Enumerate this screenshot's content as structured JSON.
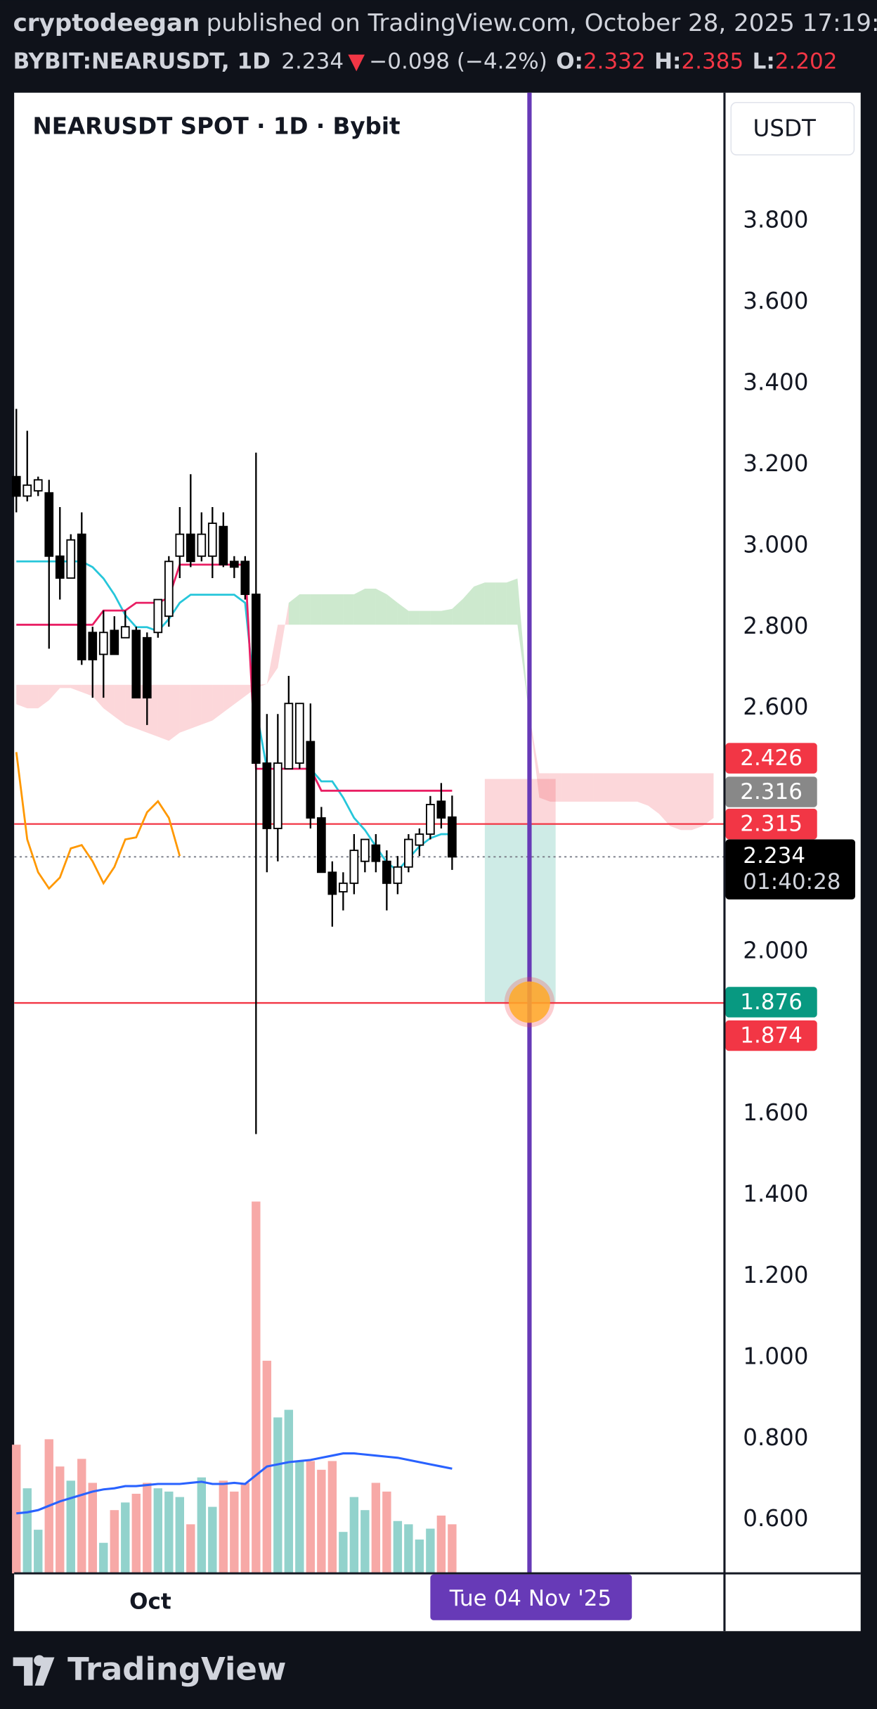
{
  "header": {
    "author": "cryptodeegan",
    "published": "published on TradingView.com, October 28, 2025 17:19:32",
    "symbol": "BYBIT:NEARUSDT, 1D",
    "arrow": "▼",
    "change": "−0.098 (−4.2%)",
    "open_label": "O:",
    "high_label": "H:",
    "low_label": "L:"
  },
  "footer": {
    "brand": "TradingView"
  },
  "chart_data": {
    "type": "candlestick",
    "title": "NEARUSDT SPOT · 1D · Bybit",
    "currency": "USDT",
    "open": [
      3.171,
      3.123,
      3.136,
      3.131,
      2.975,
      2.921,
      3.029,
      2.787,
      2.733,
      2.792,
      2.774,
      2.792,
      2.774,
      2.787,
      2.827,
      2.975,
      3.029,
      2.975,
      2.975,
      3.048,
      2.962,
      2.962,
      2.881,
      2.465,
      2.304,
      2.451,
      2.465,
      2.518,
      2.33,
      2.196,
      2.148,
      2.169,
      2.223,
      2.263,
      2.223,
      2.169,
      2.209,
      2.263,
      2.29,
      2.371,
      2.332
    ],
    "high": [
      3.338,
      3.284,
      3.171,
      3.163,
      3.096,
      3.029,
      3.083,
      2.801,
      2.841,
      2.827,
      2.841,
      2.801,
      2.787,
      2.868,
      2.975,
      3.096,
      3.177,
      3.083,
      3.096,
      3.083,
      2.975,
      2.975,
      3.23,
      2.586,
      2.586,
      2.68,
      2.612,
      2.612,
      2.357,
      2.223,
      2.196,
      2.29,
      2.277,
      2.29,
      2.25,
      2.236,
      2.29,
      2.304,
      2.384,
      2.416,
      2.385
    ],
    "low": [
      3.083,
      3.11,
      3.123,
      2.747,
      2.868,
      2.921,
      2.707,
      2.626,
      2.626,
      2.733,
      2.774,
      2.626,
      2.559,
      2.774,
      2.801,
      2.921,
      2.948,
      2.962,
      2.921,
      2.948,
      2.921,
      2.868,
      1.551,
      2.196,
      2.223,
      2.451,
      2.451,
      2.304,
      2.196,
      2.062,
      2.102,
      2.142,
      2.196,
      2.196,
      2.102,
      2.142,
      2.196,
      2.236,
      2.277,
      2.304,
      2.202
    ],
    "close": [
      3.123,
      3.15,
      3.163,
      2.975,
      2.921,
      3.015,
      2.72,
      2.72,
      2.787,
      2.733,
      2.801,
      2.626,
      2.626,
      2.868,
      2.962,
      3.029,
      2.962,
      3.029,
      3.056,
      2.954,
      2.948,
      2.881,
      2.465,
      2.304,
      2.465,
      2.612,
      2.612,
      2.33,
      2.196,
      2.142,
      2.169,
      2.25,
      2.277,
      2.223,
      2.169,
      2.209,
      2.277,
      2.29,
      2.363,
      2.33,
      2.234
    ],
    "up_color": "#ffffff",
    "down_color": "#000000",
    "volume": {
      "values": [
        118,
        78,
        40,
        123,
        98,
        85,
        105,
        83,
        28,
        58,
        65,
        73,
        83,
        78,
        75,
        70,
        45,
        88,
        61,
        85,
        75,
        83,
        341,
        195,
        143,
        150,
        103,
        103,
        95,
        103,
        38,
        70,
        58,
        83,
        75,
        48,
        45,
        31,
        41,
        53,
        45
      ],
      "up_color": "#92d2cc",
      "down_color": "#f7a9a7"
    },
    "volume_ma": {
      "color": "#2962ff",
      "values": [
        55,
        56,
        58,
        62,
        66,
        69,
        72,
        75,
        77,
        78,
        80,
        80,
        81,
        82,
        82,
        82,
        83,
        84,
        82,
        82,
        83,
        82,
        90,
        98,
        100,
        102,
        103,
        104,
        106,
        108,
        110,
        110,
        109,
        108,
        107,
        106,
        104,
        102,
        100,
        98,
        96
      ]
    },
    "tenkan": {
      "color": "#26c6da",
      "values": [
        2.962,
        2.962,
        2.962,
        2.962,
        2.962,
        2.962,
        2.962,
        2.948,
        2.92,
        2.88,
        2.83,
        2.8,
        2.8,
        2.79,
        2.82,
        2.86,
        2.88,
        2.88,
        2.88,
        2.88,
        2.88,
        2.86,
        2.6,
        2.451,
        2.451,
        2.451,
        2.451,
        2.451,
        2.42,
        2.42,
        2.38,
        2.33,
        2.3,
        2.26,
        2.22,
        2.2,
        2.23,
        2.26,
        2.28,
        2.29,
        2.29
      ]
    },
    "kijun": {
      "color": "#e91e63",
      "values": [
        2.806,
        2.806,
        2.806,
        2.806,
        2.806,
        2.806,
        2.806,
        2.806,
        2.841,
        2.841,
        2.841,
        2.86,
        2.86,
        2.86,
        2.873,
        2.954,
        2.954,
        2.954,
        2.954,
        2.954,
        2.954,
        2.954,
        2.451,
        2.451,
        2.451,
        2.451,
        2.451,
        2.451,
        2.397,
        2.397,
        2.397,
        2.397,
        2.397,
        2.397,
        2.397,
        2.397,
        2.397,
        2.397,
        2.397,
        2.397,
        2.397
      ]
    },
    "lagging": {
      "color": "#ff9800",
      "values": [
        2.492,
        2.277,
        2.196,
        2.156,
        2.183,
        2.255,
        2.263,
        2.223,
        2.169,
        2.209,
        2.277,
        2.282,
        2.344,
        2.371,
        2.33,
        2.236,
        null,
        null,
        null,
        null,
        null,
        null,
        null,
        null,
        null,
        null,
        null,
        null,
        null,
        null,
        null,
        null,
        null,
        null,
        null,
        null,
        null,
        null,
        null,
        null,
        null
      ]
    },
    "cloud": {
      "up_color": "rgba(76,175,80,0.28)",
      "down_color": "rgba(242,54,69,0.2)",
      "span_a": [
        2.61,
        2.6,
        2.6,
        2.62,
        2.65,
        2.65,
        2.64,
        2.63,
        2.6,
        2.58,
        2.56,
        2.55,
        2.54,
        2.53,
        2.52,
        2.54,
        2.55,
        2.56,
        2.57,
        2.59,
        2.61,
        2.63,
        2.65,
        2.66,
        2.7,
        2.86,
        2.881,
        2.881,
        2.881,
        2.881,
        2.881,
        2.881,
        2.895,
        2.895,
        2.881,
        2.86,
        2.84,
        2.84,
        2.84,
        2.84,
        2.845,
        2.87,
        2.9,
        2.91,
        2.91,
        2.91,
        2.92,
        2.6,
        2.38,
        2.37,
        2.37,
        2.37,
        2.37,
        2.37,
        2.37,
        2.37,
        2.37,
        2.37,
        2.36,
        2.34,
        2.31,
        2.3,
        2.3,
        2.31,
        2.33
      ],
      "span_b": [
        2.658,
        2.658,
        2.658,
        2.658,
        2.658,
        2.658,
        2.658,
        2.658,
        2.658,
        2.658,
        2.658,
        2.658,
        2.658,
        2.658,
        2.658,
        2.658,
        2.658,
        2.658,
        2.658,
        2.658,
        2.658,
        2.658,
        2.658,
        2.66,
        2.806,
        2.806,
        2.806,
        2.806,
        2.806,
        2.806,
        2.806,
        2.806,
        2.806,
        2.806,
        2.806,
        2.806,
        2.806,
        2.806,
        2.806,
        2.806,
        2.806,
        2.806,
        2.806,
        2.806,
        2.806,
        2.806,
        2.806,
        2.6,
        2.44,
        2.44,
        2.44,
        2.44,
        2.44,
        2.44,
        2.44,
        2.44,
        2.44,
        2.44,
        2.44,
        2.44,
        2.44,
        2.44,
        2.44,
        2.44,
        2.44
      ]
    },
    "hlines": [
      {
        "value": 2.315,
        "color": "#f23645"
      },
      {
        "value": 1.874,
        "color": "#f23645"
      }
    ],
    "position": {
      "stop": 2.426,
      "entry": 2.316,
      "target": 1.876,
      "loss_color": "rgba(242,54,69,0.2)",
      "profit_color": "rgba(8,153,129,0.2)",
      "stop_color": "#f23645",
      "entry_color": "#888888",
      "target_color": "#089981"
    },
    "countdown": "01:40:28",
    "marker_color": "#673ab7",
    "crosshair": {
      "label": "Tue 04 Nov '25"
    },
    "x_labels": [
      "Oct"
    ],
    "yticks": [
      {
        "value": 3.8,
        "label": "3.800"
      },
      {
        "value": 3.6,
        "label": "3.600"
      },
      {
        "value": 3.4,
        "label": "3.400"
      },
      {
        "value": 3.2,
        "label": "3.200"
      },
      {
        "value": 3.0,
        "label": "3.000"
      },
      {
        "value": 2.8,
        "label": "2.800"
      },
      {
        "value": 2.6,
        "label": "2.600"
      },
      {
        "value": 2.0,
        "label": "2.000"
      },
      {
        "value": 1.6,
        "label": "1.600"
      },
      {
        "value": 1.4,
        "label": "1.400"
      },
      {
        "value": 1.2,
        "label": "1.200"
      },
      {
        "value": 1.0,
        "label": "1.000"
      },
      {
        "value": 0.8,
        "label": "0.800"
      },
      {
        "value": 0.6,
        "label": "0.600"
      }
    ]
  }
}
